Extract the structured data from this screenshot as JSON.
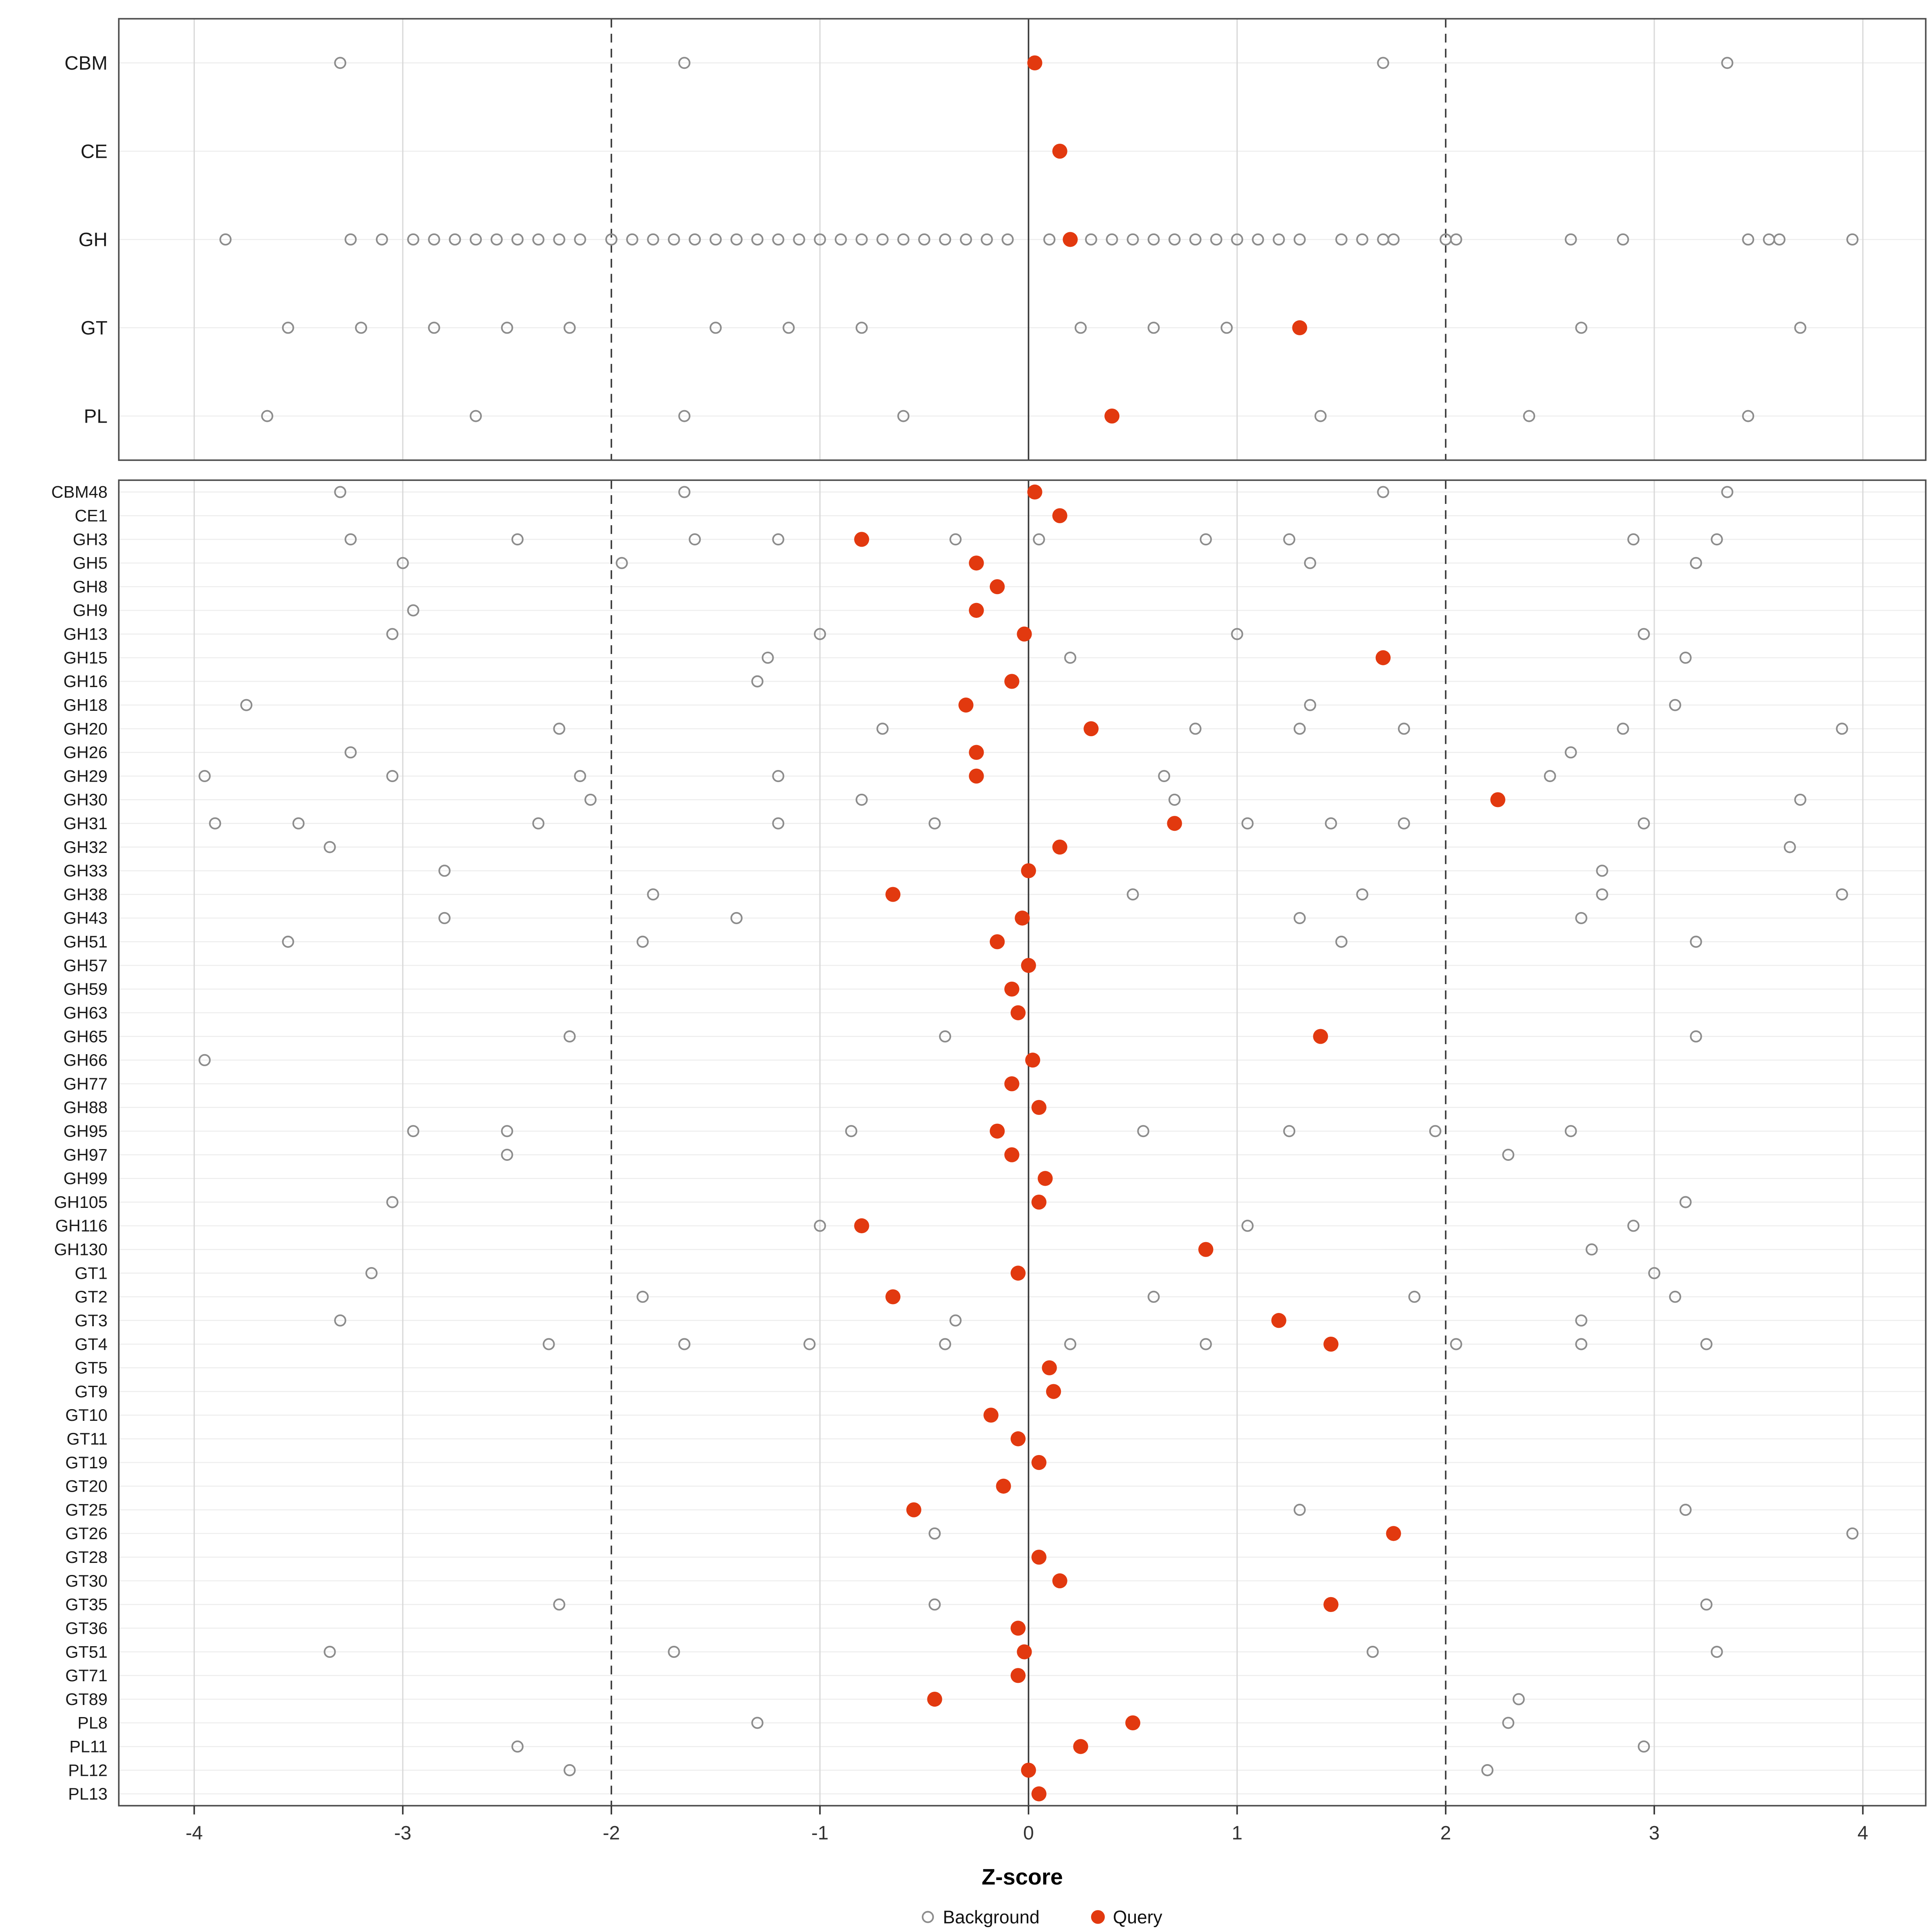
{
  "chart_data": {
    "type": "scatter",
    "title": "",
    "xlabel": "Z-score",
    "x_ticks": [
      -4,
      -3,
      -2,
      -1,
      0,
      1,
      2,
      3,
      4
    ],
    "xlim": [
      -4.35,
      4.35
    ],
    "reference_lines": {
      "solid": [
        0
      ],
      "dashed": [
        -2,
        2
      ]
    },
    "grid": true,
    "legend_position": "bottom",
    "legend": [
      {
        "label": "Background",
        "style": "open-circle"
      },
      {
        "label": "Query",
        "style": "filled-circle"
      }
    ],
    "colors": {
      "query_point": "#E2390F",
      "background_point": "#8C8C8C",
      "grid_major": "#D9D9D9",
      "grid_minor": "#EDEDED",
      "refline": "#3A3A3A",
      "panel_border": "#4D4D4D",
      "tick_text": "#333333",
      "label_text": "#1A1A1A"
    },
    "panels": [
      {
        "name": "family-summary",
        "rows": [
          {
            "label": "CBM",
            "query": 0.03,
            "background": [
              -3.3,
              -1.65,
              1.7,
              3.35
            ]
          },
          {
            "label": "CE",
            "query": 0.15,
            "background": []
          },
          {
            "label": "GH",
            "query": 0.2,
            "background": [
              -3.85,
              -3.25,
              -3.1,
              -2.95,
              -2.85,
              -2.75,
              -2.65,
              -2.55,
              -2.45,
              -2.35,
              -2.25,
              -2.15,
              -2.0,
              -1.9,
              -1.8,
              -1.7,
              -1.6,
              -1.5,
              -1.4,
              -1.3,
              -1.2,
              -1.1,
              -1.0,
              -0.9,
              -0.8,
              -0.7,
              -0.6,
              -0.5,
              -0.4,
              -0.3,
              -0.2,
              -0.1,
              0.1,
              0.3,
              0.4,
              0.5,
              0.6,
              0.7,
              0.8,
              0.9,
              1.0,
              1.1,
              1.2,
              1.3,
              1.5,
              1.6,
              1.7,
              1.75,
              2.0,
              2.05,
              2.6,
              2.85,
              3.45,
              3.55,
              3.6,
              3.95
            ]
          },
          {
            "label": "GT",
            "query": 1.3,
            "background": [
              -3.55,
              -3.2,
              -2.85,
              -2.5,
              -2.2,
              -1.5,
              -1.15,
              -0.8,
              0.25,
              0.6,
              0.95,
              2.65,
              3.7
            ]
          },
          {
            "label": "PL",
            "query": 0.4,
            "background": [
              -3.65,
              -2.65,
              -1.65,
              -0.6,
              1.4,
              2.4,
              3.45
            ]
          }
        ]
      },
      {
        "name": "subfamily-detail",
        "rows": [
          {
            "label": "CBM48",
            "query": 0.03,
            "background": [
              -3.3,
              -1.65,
              1.7,
              3.35
            ]
          },
          {
            "label": "CE1",
            "query": 0.15,
            "background": []
          },
          {
            "label": "GH3",
            "query": -0.8,
            "background": [
              -3.25,
              -2.45,
              -1.6,
              -1.2,
              -0.35,
              0.05,
              0.85,
              1.25,
              2.9,
              3.3
            ]
          },
          {
            "label": "GH5",
            "query": -0.25,
            "background": [
              -3.0,
              -1.95,
              1.35,
              3.2
            ]
          },
          {
            "label": "GH8",
            "query": -0.15,
            "background": []
          },
          {
            "label": "GH9",
            "query": -0.25,
            "background": [
              -2.95
            ]
          },
          {
            "label": "GH13",
            "query": -0.02,
            "background": [
              -3.05,
              -1.0,
              1.0,
              2.95
            ]
          },
          {
            "label": "GH15",
            "query": 1.7,
            "background": [
              -1.25,
              0.2,
              3.15
            ]
          },
          {
            "label": "GH16",
            "query": -0.08,
            "background": [
              -1.3
            ]
          },
          {
            "label": "GH18",
            "query": -0.3,
            "background": [
              -3.75,
              1.35,
              3.1
            ]
          },
          {
            "label": "GH20",
            "query": 0.3,
            "background": [
              -2.25,
              -0.7,
              0.8,
              1.3,
              1.8,
              2.85,
              3.9
            ]
          },
          {
            "label": "GH26",
            "query": -0.25,
            "background": [
              -3.25,
              2.6
            ]
          },
          {
            "label": "GH29",
            "query": -0.25,
            "background": [
              -3.95,
              -3.05,
              -2.15,
              -1.2,
              0.65,
              2.5
            ]
          },
          {
            "label": "GH30",
            "query": 2.25,
            "background": [
              -2.1,
              -0.8,
              0.7,
              3.7
            ]
          },
          {
            "label": "GH31",
            "query": 0.7,
            "background": [
              -3.9,
              -3.5,
              -2.35,
              -1.2,
              -0.45,
              1.05,
              1.45,
              1.8,
              2.95
            ]
          },
          {
            "label": "GH32",
            "query": 0.15,
            "background": [
              -3.35,
              3.65
            ]
          },
          {
            "label": "GH33",
            "query": 0.0,
            "background": [
              -2.8,
              2.75
            ]
          },
          {
            "label": "GH38",
            "query": -0.65,
            "background": [
              -1.8,
              0.5,
              1.6,
              2.75,
              3.9
            ]
          },
          {
            "label": "GH43",
            "query": -0.03,
            "background": [
              -2.8,
              -1.4,
              1.3,
              2.65
            ]
          },
          {
            "label": "GH51",
            "query": -0.15,
            "background": [
              -3.55,
              -1.85,
              1.5,
              3.2
            ]
          },
          {
            "label": "GH57",
            "query": 0.0,
            "background": []
          },
          {
            "label": "GH59",
            "query": -0.08,
            "background": []
          },
          {
            "label": "GH63",
            "query": -0.05,
            "background": []
          },
          {
            "label": "GH65",
            "query": 1.4,
            "background": [
              -2.2,
              -0.4,
              3.2
            ]
          },
          {
            "label": "GH66",
            "query": 0.02,
            "background": [
              -3.95
            ]
          },
          {
            "label": "GH77",
            "query": -0.08,
            "background": []
          },
          {
            "label": "GH88",
            "query": 0.05,
            "background": []
          },
          {
            "label": "GH95",
            "query": -0.15,
            "background": [
              -2.95,
              -2.5,
              -0.85,
              0.55,
              1.25,
              1.95,
              2.6
            ]
          },
          {
            "label": "GH97",
            "query": -0.08,
            "background": [
              -2.5,
              2.3
            ]
          },
          {
            "label": "GH99",
            "query": 0.08,
            "background": []
          },
          {
            "label": "GH105",
            "query": 0.05,
            "background": [
              -3.05,
              3.15
            ]
          },
          {
            "label": "GH116",
            "query": -0.8,
            "background": [
              -1.0,
              1.05,
              2.9
            ]
          },
          {
            "label": "GH130",
            "query": 0.85,
            "background": [
              2.7
            ]
          },
          {
            "label": "GT1",
            "query": -0.05,
            "background": [
              -3.15,
              3.0
            ]
          },
          {
            "label": "GT2",
            "query": -0.65,
            "background": [
              -1.85,
              0.6,
              1.85,
              3.1
            ]
          },
          {
            "label": "GT3",
            "query": 1.2,
            "background": [
              -3.3,
              -0.35,
              2.65
            ]
          },
          {
            "label": "GT4",
            "query": 1.45,
            "background": [
              -2.3,
              -1.65,
              -1.05,
              -0.4,
              0.2,
              0.85,
              2.05,
              2.65,
              3.25
            ]
          },
          {
            "label": "GT5",
            "query": 0.1,
            "background": []
          },
          {
            "label": "GT9",
            "query": 0.12,
            "background": []
          },
          {
            "label": "GT10",
            "query": -0.18,
            "background": []
          },
          {
            "label": "GT11",
            "query": -0.05,
            "background": []
          },
          {
            "label": "GT19",
            "query": 0.05,
            "background": []
          },
          {
            "label": "GT20",
            "query": -0.12,
            "background": []
          },
          {
            "label": "GT25",
            "query": -0.55,
            "background": [
              1.3,
              3.15
            ]
          },
          {
            "label": "GT26",
            "query": 1.75,
            "background": [
              -0.45,
              3.95
            ]
          },
          {
            "label": "GT28",
            "query": 0.05,
            "background": []
          },
          {
            "label": "GT30",
            "query": 0.15,
            "background": []
          },
          {
            "label": "GT35",
            "query": 1.45,
            "background": [
              -2.25,
              -0.45,
              3.25
            ]
          },
          {
            "label": "GT36",
            "query": -0.05,
            "background": []
          },
          {
            "label": "GT51",
            "query": -0.02,
            "background": [
              -3.35,
              -1.7,
              1.65,
              3.3
            ]
          },
          {
            "label": "GT71",
            "query": -0.05,
            "background": []
          },
          {
            "label": "GT89",
            "query": -0.45,
            "background": [
              2.35
            ]
          },
          {
            "label": "PL8",
            "query": 0.5,
            "background": [
              -1.3,
              2.3
            ]
          },
          {
            "label": "PL11",
            "query": 0.25,
            "background": [
              -2.45,
              2.95
            ]
          },
          {
            "label": "PL12",
            "query": 0.0,
            "background": [
              -2.2,
              2.2
            ]
          },
          {
            "label": "PL13",
            "query": 0.05,
            "background": []
          }
        ]
      }
    ]
  }
}
